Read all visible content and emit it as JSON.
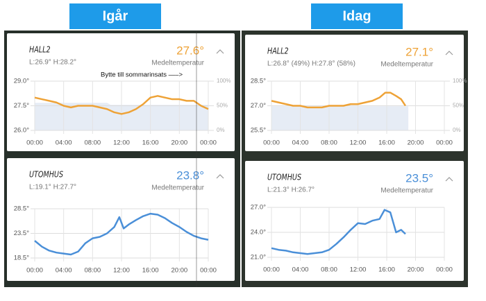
{
  "panels": [
    {
      "label": "Igår",
      "cards": [
        {
          "title": "HALL2",
          "value": "27.6°",
          "stats": "L:26.9° H:28.2°",
          "caption": "Medeltemperatur",
          "annotation": "Bytte till sommarinsats —–>",
          "chart": {
            "color": "#eea236",
            "xlim": [
              0,
              24
            ],
            "xticks": [
              {
                "value": 0,
                "label": "00:00"
              },
              {
                "value": 4,
                "label": "04:00"
              },
              {
                "value": 8,
                "label": "08:00"
              },
              {
                "value": 12,
                "label": "12:00"
              },
              {
                "value": 16,
                "label": "16:00"
              },
              {
                "value": 20,
                "label": "20:00"
              },
              {
                "value": 24,
                "label": "00:00"
              }
            ],
            "ylim": [
              26,
              29
            ],
            "yticks": [
              {
                "value": 29,
                "label": "29.0°"
              },
              {
                "value": 27.5,
                "label": "27.5°"
              },
              {
                "value": 26,
                "label": "26.0°"
              }
            ],
            "y2lim": [
              0,
              100
            ],
            "y2ticks": [
              {
                "value": 100,
                "label": "100%"
              },
              {
                "value": 50,
                "label": "50%"
              },
              {
                "value": 0,
                "label": "0%"
              }
            ],
            "x": [
              0,
              1,
              2,
              3,
              4,
              5,
              6,
              7,
              8,
              9,
              10,
              11,
              12,
              13,
              14,
              15,
              16,
              17,
              18,
              19,
              20,
              21,
              22,
              23,
              24
            ],
            "values": [
              28.0,
              27.9,
              27.8,
              27.7,
              27.5,
              27.4,
              27.5,
              27.5,
              27.5,
              27.4,
              27.3,
              27.1,
              27.0,
              27.1,
              27.3,
              27.6,
              28.0,
              28.1,
              28.0,
              27.9,
              27.9,
              27.8,
              27.8,
              27.5,
              27.3
            ],
            "area_x": [
              0,
              10,
              10.5,
              24
            ],
            "area_values": [
              56,
              56,
              52,
              52
            ]
          }
        },
        {
          "title": "UTOMHUS",
          "value": "23.8°",
          "stats": "L:19.1° H:27.7°",
          "caption": "Medeltemperatur",
          "chart": {
            "color": "#4a8fd8",
            "xlim": [
              0,
              24
            ],
            "xticks": [
              {
                "value": 0,
                "label": "00:00"
              },
              {
                "value": 4,
                "label": "04:00"
              },
              {
                "value": 8,
                "label": "08:00"
              },
              {
                "value": 12,
                "label": "12:00"
              },
              {
                "value": 16,
                "label": "16:00"
              },
              {
                "value": 20,
                "label": "20:00"
              },
              {
                "value": 24,
                "label": "00:00"
              }
            ],
            "ylim": [
              18.5,
              28.5
            ],
            "yticks": [
              {
                "value": 28.5,
                "label": "28.5°"
              },
              {
                "value": 23.5,
                "label": "23.5°"
              },
              {
                "value": 18.5,
                "label": "18.5°"
              }
            ],
            "x": [
              0,
              1,
              2,
              3,
              4,
              5,
              6,
              7,
              8,
              9,
              10,
              11,
              11.7,
              12.3,
              13,
              14,
              15,
              16,
              17,
              18,
              19,
              20,
              21,
              22,
              23,
              24
            ],
            "values": [
              22.0,
              20.8,
              20.0,
              19.6,
              19.4,
              19.2,
              19.8,
              21.5,
              22.5,
              22.8,
              23.5,
              24.8,
              26.8,
              24.5,
              25.3,
              26.2,
              27.0,
              27.5,
              27.3,
              26.6,
              25.6,
              24.8,
              23.8,
              23.0,
              22.5,
              22.2
            ]
          }
        }
      ]
    },
    {
      "label": "Idag",
      "cards": [
        {
          "title": "HALL2",
          "value": "27.1°",
          "stats": "L:26.8° (49%)   H:27.8° (58%)",
          "caption": "Medeltemperatur",
          "chart": {
            "color": "#eea236",
            "xlim": [
              0,
              24
            ],
            "xticks": [
              {
                "value": 0,
                "label": "00:00"
              },
              {
                "value": 4,
                "label": "04:00"
              },
              {
                "value": 8,
                "label": "08:00"
              },
              {
                "value": 12,
                "label": "12:00"
              },
              {
                "value": 16,
                "label": "16:00"
              },
              {
                "value": 20,
                "label": "20:00"
              },
              {
                "value": 24,
                "label": "00:00"
              }
            ],
            "ylim": [
              25.5,
              28.5
            ],
            "yticks": [
              {
                "value": 28.5,
                "label": "28.5°"
              },
              {
                "value": 27,
                "label": "27.0°"
              },
              {
                "value": 25.5,
                "label": "25.5°"
              }
            ],
            "y2lim": [
              0,
              100
            ],
            "y2ticks": [
              {
                "value": 100,
                "label": "100%"
              },
              {
                "value": 50,
                "label": "50%"
              },
              {
                "value": 0,
                "label": "0%"
              }
            ],
            "x": [
              0,
              1,
              2,
              3,
              4,
              5,
              6,
              7,
              8,
              9,
              10,
              11,
              12,
              13,
              14,
              15,
              15.8,
              16.5,
              17.3,
              18,
              18.6
            ],
            "values": [
              27.3,
              27.2,
              27.1,
              27.0,
              27.0,
              26.9,
              26.9,
              26.9,
              27.0,
              27.0,
              27.0,
              27.1,
              27.1,
              27.2,
              27.3,
              27.5,
              27.8,
              27.8,
              27.6,
              27.4,
              27.0
            ],
            "area_x": [
              0,
              19
            ],
            "area_values": [
              49,
              49
            ]
          }
        },
        {
          "title": "UTOMHUS",
          "value": "23.5°",
          "stats": "L:21.3° H:26.7°",
          "caption": "Medeltemperatur",
          "chart": {
            "color": "#4a8fd8",
            "xlim": [
              0,
              24
            ],
            "xticks": [
              {
                "value": 0,
                "label": "00:00"
              },
              {
                "value": 4,
                "label": "04:00"
              },
              {
                "value": 8,
                "label": "08:00"
              },
              {
                "value": 12,
                "label": "12:00"
              },
              {
                "value": 16,
                "label": "16:00"
              },
              {
                "value": 20,
                "label": "20:00"
              },
              {
                "value": 24,
                "label": "00:00"
              }
            ],
            "ylim": [
              21,
              27
            ],
            "yticks": [
              {
                "value": 27,
                "label": "27.0°"
              },
              {
                "value": 24,
                "label": "24.0°"
              },
              {
                "value": 21,
                "label": "21.0°"
              }
            ],
            "x": [
              0,
              1,
              2,
              3,
              4,
              5,
              6,
              7,
              8,
              9,
              10,
              11,
              12,
              13,
              14,
              15,
              15.7,
              16.5,
              17.3,
              18,
              18.6
            ],
            "values": [
              22.1,
              21.9,
              21.8,
              21.6,
              21.5,
              21.4,
              21.5,
              21.6,
              21.9,
              22.6,
              23.4,
              24.3,
              25.1,
              25.0,
              25.4,
              25.6,
              26.7,
              26.4,
              24.0,
              24.3,
              23.8
            ]
          }
        }
      ]
    }
  ]
}
